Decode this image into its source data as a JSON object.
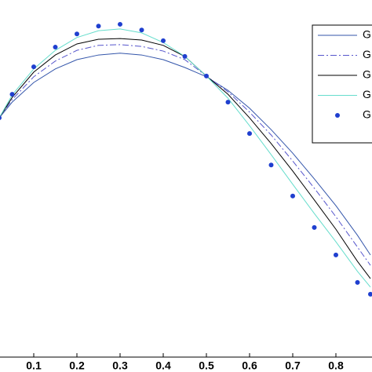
{
  "chart_data": {
    "type": "line",
    "x": [
      0.02,
      0.05,
      0.1,
      0.15,
      0.2,
      0.25,
      0.3,
      0.35,
      0.4,
      0.45,
      0.5,
      0.55,
      0.6,
      0.65,
      0.7,
      0.75,
      0.8,
      0.85,
      0.88
    ],
    "xlim": [
      0,
      0.9
    ],
    "xticks": [
      0.1,
      0.2,
      0.3,
      0.4,
      0.5,
      0.6,
      0.7,
      0.8
    ],
    "ylim": [
      0,
      1
    ],
    "series": [
      {
        "name": "G",
        "color": "#3355aa",
        "style": "solid",
        "values": [
          0.67,
          0.714,
          0.769,
          0.807,
          0.833,
          0.846,
          0.851,
          0.846,
          0.833,
          0.811,
          0.785,
          0.747,
          0.697,
          0.637,
          0.571,
          0.499,
          0.424,
          0.341,
          0.286
        ]
      },
      {
        "name": "G",
        "color": "#5555cc",
        "style": "dashdot",
        "values": [
          0.67,
          0.721,
          0.785,
          0.829,
          0.859,
          0.873,
          0.875,
          0.87,
          0.857,
          0.833,
          0.787,
          0.743,
          0.686,
          0.622,
          0.549,
          0.473,
          0.393,
          0.308,
          0.257
        ]
      },
      {
        "name": "G",
        "color": "#000000",
        "style": "solid",
        "values": [
          0.67,
          0.727,
          0.798,
          0.846,
          0.877,
          0.89,
          0.892,
          0.888,
          0.873,
          0.842,
          0.787,
          0.736,
          0.67,
          0.598,
          0.521,
          0.44,
          0.358,
          0.268,
          0.22
        ]
      },
      {
        "name": "G",
        "color": "#66ddcc",
        "style": "solid",
        "values": [
          0.67,
          0.734,
          0.807,
          0.859,
          0.895,
          0.914,
          0.919,
          0.908,
          0.881,
          0.842,
          0.787,
          0.725,
          0.648,
          0.567,
          0.484,
          0.402,
          0.323,
          0.24,
          0.196
        ]
      },
      {
        "name": "G",
        "color": "#1f3fcf",
        "style": "dots",
        "values": [
          0.67,
          0.736,
          0.813,
          0.868,
          0.905,
          0.927,
          0.932,
          0.916,
          0.886,
          0.842,
          0.787,
          0.714,
          0.626,
          0.538,
          0.451,
          0.363,
          0.286,
          0.209,
          0.176
        ]
      }
    ]
  }
}
